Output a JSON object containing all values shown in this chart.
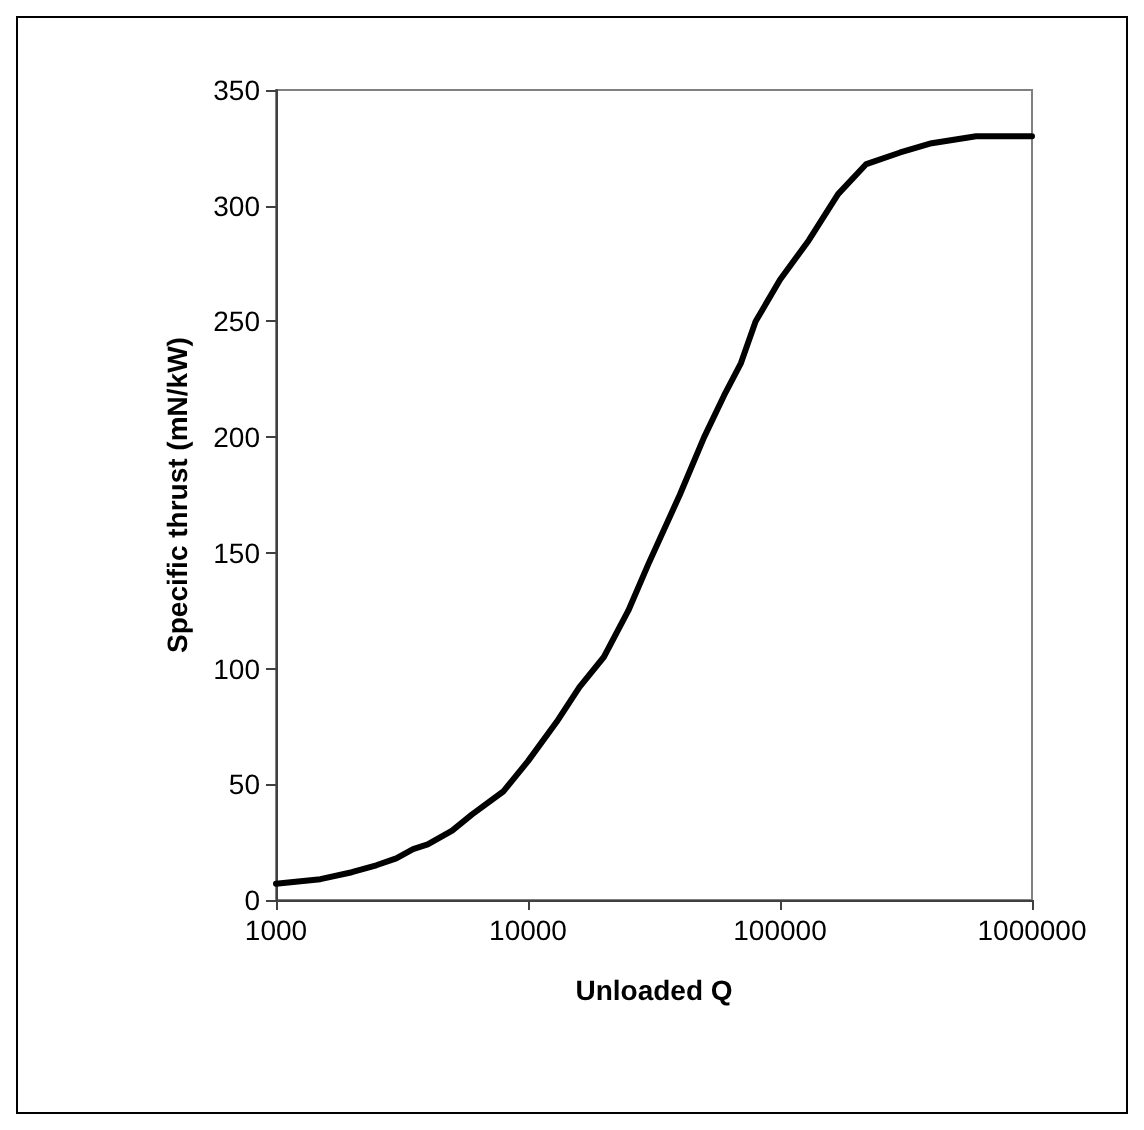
{
  "chart_data": {
    "type": "line",
    "xlabel": "Unloaded Q",
    "ylabel": "Specific thrust (mN/kW)",
    "log": "x",
    "xlim": [
      1000,
      1000000
    ],
    "xticks": [
      1000,
      10000,
      100000,
      1000000
    ],
    "ylim": [
      0,
      350
    ],
    "yticks": [
      0,
      50,
      100,
      150,
      200,
      250,
      300,
      350
    ],
    "grid": false,
    "marker": "none",
    "line_style": "solid",
    "x": [
      1000,
      1500,
      2000,
      2500,
      3000,
      3500,
      4000,
      5000,
      6000,
      8000,
      10000,
      13000,
      16000,
      20000,
      25000,
      30000,
      40000,
      50000,
      60000,
      70000,
      80000,
      100000,
      130000,
      170000,
      220000,
      300000,
      400000,
      600000,
      1000000
    ],
    "series": [
      {
        "color": "#000000",
        "values": [
          7,
          9,
          12,
          15,
          18,
          22,
          24,
          30,
          37,
          47,
          60,
          77,
          92,
          105,
          125,
          145,
          175,
          200,
          218,
          232,
          250,
          268,
          285,
          305,
          318,
          323,
          327,
          330,
          330
        ]
      }
    ]
  }
}
